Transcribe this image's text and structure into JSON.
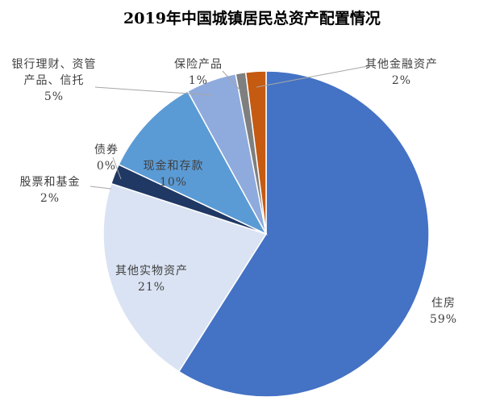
{
  "chart_data": {
    "type": "pie",
    "title": "2019年中国城镇居民总资产配置情况",
    "categories": [
      "住房",
      "其他实物资产",
      "股票和基金",
      "债券",
      "现金和存款",
      "银行理财、资管产品、信托",
      "保险产品",
      "其他金融资产"
    ],
    "values": [
      59,
      21,
      2,
      0,
      10,
      5,
      1,
      2
    ],
    "value_labels": [
      "59%",
      "21%",
      "2%",
      "0%",
      "10%",
      "5%",
      "1%",
      "2%"
    ],
    "colors": [
      "#4472c4",
      "#dae3f3",
      "#203864",
      "#ffffff",
      "#5b9bd5",
      "#8faadc",
      "#7f7f7f",
      "#c55a11"
    ]
  }
}
